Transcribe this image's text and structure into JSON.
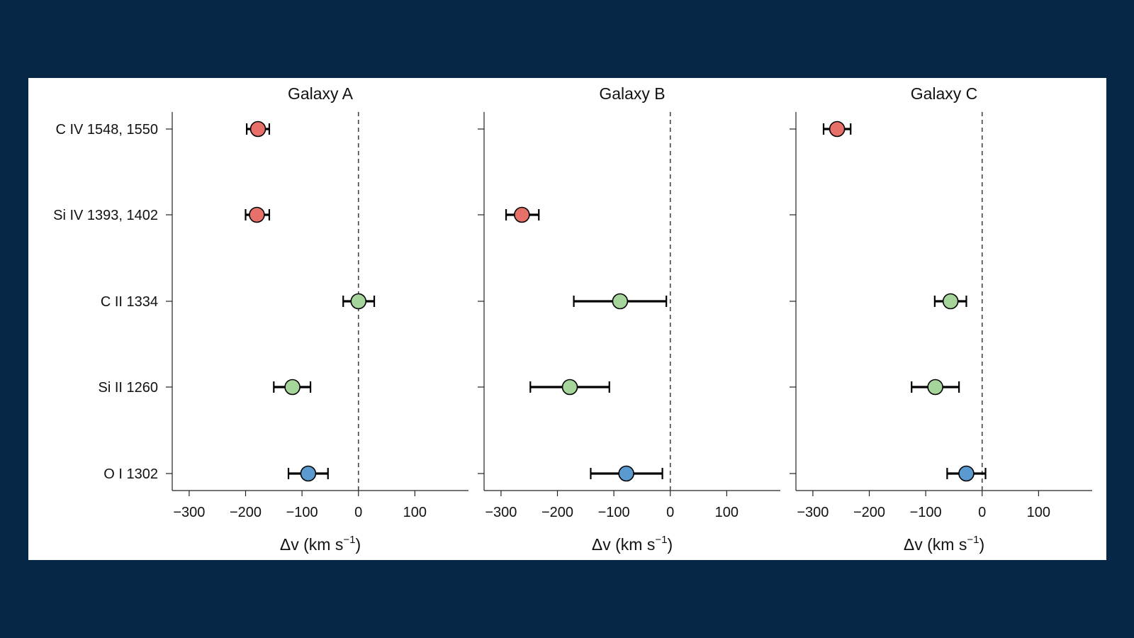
{
  "chart_data": {
    "type": "scatter",
    "ylabels": [
      "C IV 1548, 1550",
      "Si IV 1393, 1402",
      "C II 1334",
      "Si II 1260",
      "O I 1302"
    ],
    "xlim": [
      -330,
      195
    ],
    "xticks": [
      -300,
      -200,
      -100,
      0,
      100
    ],
    "xtick_labels": [
      "−300",
      "−200",
      "−100",
      "0",
      "100"
    ],
    "xlabel_main": "Δv (km s",
    "xlabel_sup": "−1",
    "xlabel_end": ")",
    "reference_line_x": 0,
    "colors": {
      "high_ion": "#e8706a",
      "low_ion": "#a5d59a",
      "neutral": "#5b9ad0"
    },
    "panels": [
      {
        "title": "Galaxy A",
        "points": [
          {
            "line": "C IV 1548, 1550",
            "x": -178,
            "xerr_low": 20,
            "xerr_high": 20,
            "color": "high_ion"
          },
          {
            "line": "Si IV 1393, 1402",
            "x": -180,
            "xerr_low": 20,
            "xerr_high": 22,
            "color": "high_ion"
          },
          {
            "line": "C II 1334",
            "x": 0,
            "xerr_low": 27,
            "xerr_high": 28,
            "color": "low_ion"
          },
          {
            "line": "Si II 1260",
            "x": -117,
            "xerr_low": 33,
            "xerr_high": 32,
            "color": "low_ion"
          },
          {
            "line": "O I 1302",
            "x": -89,
            "xerr_low": 35,
            "xerr_high": 35,
            "color": "neutral"
          }
        ]
      },
      {
        "title": "Galaxy B",
        "points": [
          {
            "line": "Si IV 1393, 1402",
            "x": -263,
            "xerr_low": 28,
            "xerr_high": 30,
            "color": "high_ion"
          },
          {
            "line": "C II 1334",
            "x": -89,
            "xerr_low": 82,
            "xerr_high": 82,
            "color": "low_ion"
          },
          {
            "line": "Si II 1260",
            "x": -178,
            "xerr_low": 70,
            "xerr_high": 70,
            "color": "low_ion"
          },
          {
            "line": "O I 1302",
            "x": -78,
            "xerr_low": 63,
            "xerr_high": 64,
            "color": "neutral"
          }
        ]
      },
      {
        "title": "Galaxy C",
        "points": [
          {
            "line": "C IV 1548, 1550",
            "x": -257,
            "xerr_low": 24,
            "xerr_high": 24,
            "color": "high_ion"
          },
          {
            "line": "C II 1334",
            "x": -56,
            "xerr_low": 28,
            "xerr_high": 28,
            "color": "low_ion"
          },
          {
            "line": "Si II 1260",
            "x": -83,
            "xerr_low": 42,
            "xerr_high": 42,
            "color": "low_ion"
          },
          {
            "line": "O I 1302",
            "x": -28,
            "xerr_low": 34,
            "xerr_high": 34,
            "color": "neutral"
          }
        ]
      }
    ]
  }
}
